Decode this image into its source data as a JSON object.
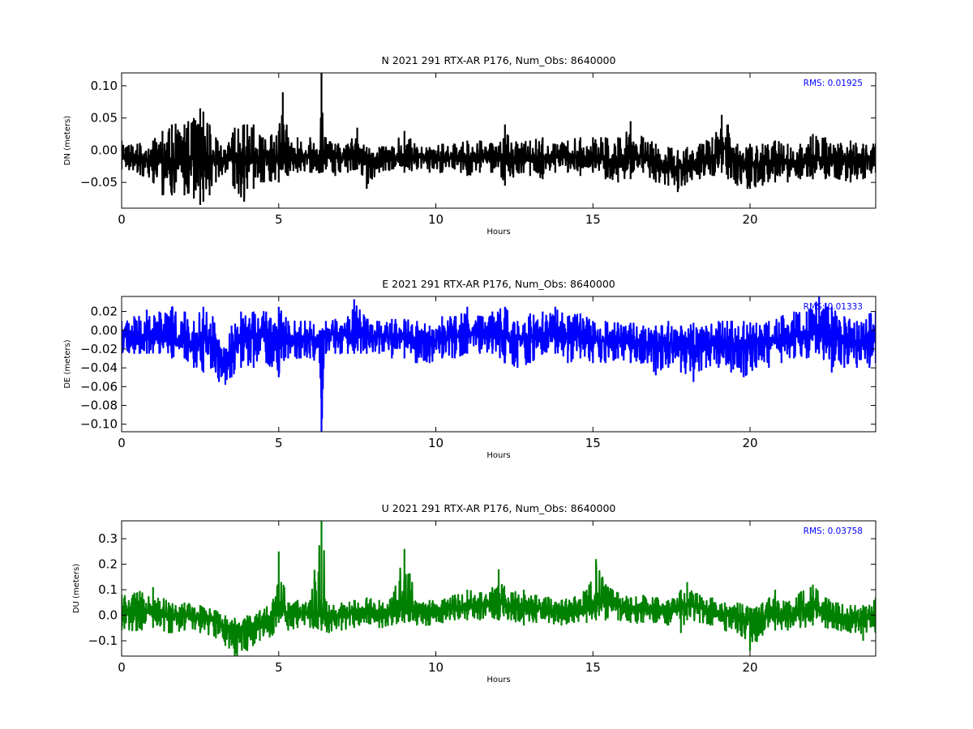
{
  "chart_data": [
    {
      "type": "line",
      "title": "N 2021 291 RTX-AR  P176, Num_Obs: 8640000",
      "xlabel": "Hours",
      "ylabel": "DN (meters)",
      "xlim": [
        0,
        24
      ],
      "ylim": [
        -0.09,
        0.12
      ],
      "xticks": [
        0,
        5,
        10,
        15,
        20
      ],
      "xtick_labels": [
        "0",
        "5",
        "10",
        "15",
        "20"
      ],
      "yticks": [
        -0.05,
        0.0,
        0.05,
        0.1
      ],
      "ytick_labels": [
        "−0.05",
        "0.00",
        "0.05",
        "0.10"
      ],
      "annotation": "RMS:  0.01925",
      "annotation_color": "#0000ff",
      "grid": false,
      "series": [
        {
          "color": "#000000",
          "x": [
            0,
            0.5,
            1,
            1.3,
            1.6,
            2,
            2.3,
            2.5,
            2.6,
            2.8,
            3,
            3.3,
            3.6,
            3.9,
            4.0,
            4.2,
            4.5,
            5,
            5.13,
            5.3,
            5.6,
            6.0,
            6.3,
            6.36,
            6.5,
            6.8,
            7.2,
            7.5,
            7.8,
            8.2,
            8.6,
            9.0,
            9.4,
            9.8,
            10.2,
            10.6,
            11.0,
            11.4,
            11.8,
            12.2,
            12.6,
            13.0,
            13.4,
            13.8,
            14.2,
            14.6,
            15.0,
            15.4,
            15.8,
            16.2,
            16.6,
            17.0,
            17.4,
            17.7,
            18.0,
            18.4,
            18.8,
            19.1,
            19.3,
            19.6,
            20.0,
            20.4,
            20.8,
            21.2,
            21.6,
            22.0,
            22.4,
            22.8,
            23.2,
            23.6,
            24.0
          ],
          "center": [
            -0.01,
            -0.012,
            -0.015,
            -0.02,
            -0.018,
            -0.015,
            -0.01,
            -0.005,
            -0.015,
            -0.01,
            -0.015,
            -0.02,
            -0.005,
            -0.01,
            -0.01,
            -0.01,
            -0.01,
            -0.012,
            -0.005,
            -0.01,
            -0.008,
            -0.01,
            -0.01,
            -0.01,
            -0.008,
            -0.012,
            -0.01,
            -0.005,
            -0.02,
            -0.012,
            -0.01,
            -0.012,
            -0.01,
            -0.012,
            -0.012,
            -0.01,
            -0.012,
            -0.01,
            -0.012,
            -0.015,
            -0.012,
            -0.012,
            -0.012,
            -0.01,
            -0.01,
            -0.012,
            -0.012,
            -0.015,
            -0.018,
            -0.012,
            -0.01,
            -0.02,
            -0.025,
            -0.028,
            -0.02,
            -0.018,
            -0.015,
            0.01,
            -0.005,
            -0.02,
            -0.022,
            -0.02,
            -0.02,
            -0.02,
            -0.018,
            -0.01,
            -0.015,
            -0.015,
            -0.018,
            -0.015,
            -0.012
          ],
          "upper": [
            0.015,
            0.01,
            0.015,
            0.03,
            0.04,
            0.04,
            0.05,
            0.065,
            0.06,
            0.04,
            0.02,
            0.0,
            0.035,
            0.04,
            0.04,
            0.04,
            0.02,
            0.03,
            0.09,
            0.02,
            0.02,
            0.02,
            0.0,
            0.12,
            0.02,
            0.01,
            0.01,
            0.035,
            0.005,
            0.005,
            0.005,
            0.03,
            0.005,
            0.005,
            0.01,
            0.01,
            0.015,
            0.015,
            0.01,
            0.04,
            0.01,
            0.015,
            0.02,
            0.01,
            0.015,
            0.02,
            0.02,
            0.02,
            0.02,
            0.045,
            0.02,
            0.01,
            0.005,
            0.0,
            0.005,
            0.01,
            0.02,
            0.055,
            0.04,
            0.01,
            0.01,
            0.01,
            0.015,
            0.01,
            0.01,
            0.025,
            0.02,
            0.01,
            0.015,
            0.01,
            0.01
          ],
          "lower": [
            -0.03,
            -0.035,
            -0.05,
            -0.07,
            -0.07,
            -0.07,
            -0.075,
            -0.085,
            -0.08,
            -0.07,
            -0.05,
            -0.035,
            -0.06,
            -0.08,
            -0.06,
            -0.06,
            -0.05,
            -0.05,
            -0.03,
            -0.04,
            -0.035,
            -0.035,
            -0.035,
            -0.035,
            -0.03,
            -0.04,
            -0.035,
            -0.03,
            -0.06,
            -0.035,
            -0.03,
            -0.035,
            -0.03,
            -0.035,
            -0.035,
            -0.03,
            -0.04,
            -0.035,
            -0.035,
            -0.055,
            -0.035,
            -0.04,
            -0.045,
            -0.035,
            -0.035,
            -0.04,
            -0.035,
            -0.045,
            -0.05,
            -0.045,
            -0.035,
            -0.05,
            -0.055,
            -0.065,
            -0.05,
            -0.045,
            -0.04,
            -0.035,
            -0.045,
            -0.055,
            -0.06,
            -0.055,
            -0.05,
            -0.05,
            -0.045,
            -0.045,
            -0.045,
            -0.045,
            -0.05,
            -0.045,
            -0.035
          ]
        }
      ]
    },
    {
      "type": "line",
      "title": "E 2021 291 RTX-AR  P176, Num_Obs: 8640000",
      "xlabel": "Hours",
      "ylabel": "DE (meters)",
      "xlim": [
        0,
        24
      ],
      "ylim": [
        -0.108,
        0.036
      ],
      "xticks": [
        0,
        5,
        10,
        15,
        20
      ],
      "xtick_labels": [
        "0",
        "5",
        "10",
        "15",
        "20"
      ],
      "yticks": [
        -0.1,
        -0.08,
        -0.06,
        -0.04,
        -0.02,
        0.0,
        0.02
      ],
      "ytick_labels": [
        "−0.10",
        "−0.08",
        "−0.06",
        "−0.04",
        "−0.02",
        "0.00",
        "0.02"
      ],
      "annotation": "RMS:  0.01333",
      "annotation_color": "#0000ff",
      "grid": false,
      "series": [
        {
          "color": "#0000ff",
          "x": [
            0,
            0.4,
            0.8,
            1.2,
            1.6,
            2.0,
            2.3,
            2.6,
            2.9,
            3.1,
            3.3,
            3.5,
            3.8,
            4.2,
            4.6,
            5.0,
            5.3,
            5.7,
            6.0,
            6.3,
            6.36,
            6.5,
            6.8,
            7.2,
            7.4,
            7.8,
            8.2,
            8.6,
            9.0,
            9.4,
            9.8,
            10.2,
            10.6,
            11.0,
            11.4,
            11.8,
            12.2,
            12.6,
            13.0,
            13.4,
            13.8,
            14.2,
            14.6,
            15.0,
            15.4,
            15.8,
            16.2,
            16.6,
            17.0,
            17.4,
            17.8,
            18.2,
            18.6,
            19.0,
            19.4,
            19.8,
            20.2,
            20.6,
            21.0,
            21.4,
            21.8,
            22.2,
            22.6,
            23.0,
            23.4,
            23.8,
            24.0
          ],
          "center": [
            -0.005,
            -0.008,
            -0.005,
            -0.008,
            -0.01,
            -0.01,
            -0.015,
            -0.008,
            -0.015,
            -0.03,
            -0.04,
            -0.025,
            -0.01,
            -0.008,
            -0.005,
            -0.008,
            -0.008,
            -0.01,
            -0.008,
            -0.01,
            -0.01,
            -0.005,
            -0.004,
            -0.004,
            -0.005,
            -0.005,
            -0.006,
            -0.006,
            -0.008,
            -0.01,
            -0.012,
            -0.008,
            -0.006,
            -0.004,
            -0.004,
            -0.004,
            -0.008,
            -0.01,
            -0.008,
            -0.004,
            -0.004,
            -0.008,
            -0.006,
            -0.01,
            -0.012,
            -0.01,
            -0.012,
            -0.015,
            -0.018,
            -0.015,
            -0.016,
            -0.018,
            -0.012,
            -0.012,
            -0.015,
            -0.016,
            -0.012,
            -0.012,
            -0.008,
            -0.004,
            -0.004,
            -0.002,
            -0.006,
            -0.01,
            -0.012,
            -0.012,
            -0.01
          ],
          "upper": [
            0.01,
            0.015,
            0.022,
            0.02,
            0.025,
            0.02,
            0.01,
            0.025,
            0.015,
            -0.01,
            -0.02,
            0.005,
            0.02,
            0.02,
            0.02,
            0.025,
            0.01,
            0.01,
            0.01,
            0.0,
            0.0,
            0.01,
            0.012,
            0.015,
            0.033,
            0.012,
            0.01,
            0.012,
            0.012,
            0.01,
            0.005,
            0.015,
            0.015,
            0.025,
            0.015,
            0.02,
            0.025,
            0.01,
            0.018,
            0.02,
            0.025,
            0.015,
            0.018,
            0.01,
            0.01,
            0.008,
            0.008,
            0.005,
            0.005,
            0.01,
            0.005,
            0.008,
            0.005,
            0.01,
            0.01,
            0.01,
            0.008,
            0.01,
            0.015,
            0.02,
            0.02,
            0.036,
            0.025,
            0.015,
            0.01,
            0.018,
            0.02
          ],
          "lower": [
            -0.025,
            -0.025,
            -0.025,
            -0.025,
            -0.03,
            -0.03,
            -0.04,
            -0.045,
            -0.04,
            -0.055,
            -0.058,
            -0.05,
            -0.04,
            -0.04,
            -0.035,
            -0.05,
            -0.03,
            -0.03,
            -0.03,
            -0.035,
            -0.108,
            -0.025,
            -0.025,
            -0.025,
            -0.025,
            -0.025,
            -0.025,
            -0.03,
            -0.03,
            -0.035,
            -0.035,
            -0.03,
            -0.03,
            -0.025,
            -0.025,
            -0.025,
            -0.035,
            -0.04,
            -0.035,
            -0.025,
            -0.025,
            -0.035,
            -0.03,
            -0.035,
            -0.035,
            -0.03,
            -0.035,
            -0.035,
            -0.048,
            -0.04,
            -0.045,
            -0.055,
            -0.04,
            -0.04,
            -0.045,
            -0.05,
            -0.04,
            -0.04,
            -0.035,
            -0.03,
            -0.03,
            -0.025,
            -0.045,
            -0.04,
            -0.04,
            -0.04,
            -0.035
          ]
        }
      ]
    },
    {
      "type": "line",
      "title": "U 2021 291 RTX-AR  P176, Num_Obs: 8640000",
      "xlabel": "Hours",
      "ylabel": "DU (meters)",
      "xlim": [
        0,
        24
      ],
      "ylim": [
        -0.16,
        0.37
      ],
      "xticks": [
        0,
        5,
        10,
        15,
        20
      ],
      "xtick_labels": [
        "0",
        "5",
        "10",
        "15",
        "20"
      ],
      "yticks": [
        -0.1,
        0.0,
        0.1,
        0.2,
        0.3
      ],
      "ytick_labels": [
        "−0.1",
        "0.0",
        "0.1",
        "0.2",
        "0.3"
      ],
      "annotation": "RMS:  0.03758",
      "annotation_color": "#0000ff",
      "grid": false,
      "series": [
        {
          "color": "#008000",
          "x": [
            0,
            0.5,
            1.0,
            1.5,
            2.0,
            2.5,
            3.0,
            3.3,
            3.6,
            4.0,
            4.4,
            4.8,
            5.0,
            5.3,
            5.6,
            6.0,
            6.36,
            6.6,
            7.0,
            7.4,
            7.8,
            8.2,
            8.6,
            9.0,
            9.4,
            9.8,
            10.2,
            10.6,
            11.0,
            11.4,
            11.8,
            12.0,
            12.4,
            12.8,
            13.2,
            13.6,
            14.0,
            14.4,
            14.8,
            15.1,
            15.4,
            15.8,
            16.2,
            16.6,
            17.0,
            17.4,
            17.8,
            18.0,
            18.4,
            18.8,
            19.2,
            19.6,
            20.0,
            20.4,
            20.8,
            21.2,
            21.6,
            22.0,
            22.4,
            22.8,
            23.2,
            23.6,
            24.0
          ],
          "center": [
            0.0,
            0.01,
            0.02,
            0.0,
            0.0,
            -0.01,
            -0.02,
            -0.04,
            -0.05,
            -0.05,
            -0.03,
            -0.01,
            0.03,
            0.0,
            0.01,
            0.01,
            0.0,
            -0.01,
            0.0,
            0.01,
            0.02,
            0.01,
            0.02,
            0.02,
            0.01,
            0.02,
            0.02,
            0.03,
            0.04,
            0.04,
            0.05,
            0.05,
            0.04,
            0.04,
            0.03,
            0.02,
            0.01,
            0.02,
            0.03,
            0.06,
            0.05,
            0.04,
            0.02,
            0.02,
            0.02,
            0.01,
            0.03,
            0.04,
            0.03,
            0.02,
            0.0,
            0.0,
            -0.02,
            -0.01,
            0.0,
            0.0,
            0.02,
            0.04,
            0.02,
            0.0,
            -0.01,
            -0.02,
            0.0
          ],
          "upper": [
            0.08,
            0.09,
            0.11,
            0.05,
            0.05,
            0.04,
            0.02,
            0.0,
            -0.01,
            0.0,
            0.02,
            0.05,
            0.25,
            0.05,
            0.06,
            0.06,
            0.37,
            0.04,
            0.05,
            0.06,
            0.07,
            0.06,
            0.07,
            0.26,
            0.05,
            0.06,
            0.06,
            0.08,
            0.1,
            0.09,
            0.11,
            0.18,
            0.09,
            0.1,
            0.08,
            0.07,
            0.06,
            0.07,
            0.1,
            0.22,
            0.12,
            0.09,
            0.07,
            0.08,
            0.07,
            0.06,
            0.1,
            0.13,
            0.08,
            0.07,
            0.05,
            0.05,
            0.03,
            0.05,
            0.1,
            0.05,
            0.09,
            0.12,
            0.07,
            0.05,
            0.04,
            0.04,
            0.07
          ],
          "lower": [
            -0.06,
            -0.06,
            -0.05,
            -0.07,
            -0.06,
            -0.07,
            -0.09,
            -0.12,
            -0.16,
            -0.14,
            -0.1,
            -0.08,
            -0.03,
            -0.06,
            -0.05,
            -0.05,
            -0.06,
            -0.07,
            -0.06,
            -0.05,
            -0.03,
            -0.05,
            -0.04,
            -0.03,
            -0.04,
            -0.04,
            -0.03,
            -0.02,
            -0.02,
            -0.02,
            -0.01,
            -0.02,
            -0.02,
            -0.04,
            -0.03,
            -0.03,
            -0.04,
            -0.03,
            -0.03,
            -0.02,
            -0.02,
            -0.02,
            -0.03,
            -0.03,
            -0.03,
            -0.04,
            -0.07,
            -0.02,
            -0.03,
            -0.04,
            -0.06,
            -0.07,
            -0.14,
            -0.08,
            -0.06,
            -0.06,
            -0.05,
            -0.04,
            -0.05,
            -0.06,
            -0.07,
            -0.1,
            -0.07
          ]
        }
      ]
    }
  ]
}
